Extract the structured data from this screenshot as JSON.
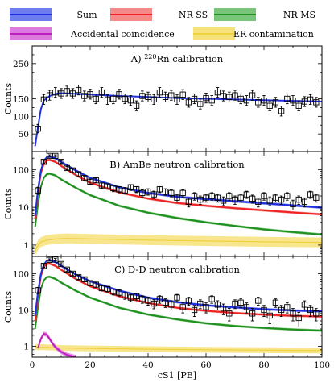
{
  "legend": [
    {
      "label": "Sum",
      "color": "#1f2fe0",
      "band": "#6f7cf0"
    },
    {
      "label": "NR SS",
      "color": "#ee2222",
      "band": "#f48a8a"
    },
    {
      "label": "NR MS",
      "color": "#1f8f1f",
      "band": "#79c579"
    },
    {
      "label": "Accidental coincidence",
      "color": "#c01fc0",
      "band": "#dd7add"
    },
    {
      "label": "ER contamination",
      "color": "#f0d040",
      "band": "#f7e27a"
    }
  ],
  "colors": {
    "sum": "#1f2fe0",
    "nrss": "#ee2222",
    "nrms": "#1f8f1f",
    "acc": "#c01fc0",
    "er": "#f0d040",
    "data": "#000000"
  },
  "xlabel": "cS1 [PE]",
  "xlim": [
    0,
    100
  ],
  "xticks": [
    "0",
    "20",
    "40",
    "60",
    "80",
    "100"
  ],
  "chart_data": [
    {
      "type": "line",
      "title": "A) 220Rn calibration",
      "title_sup": "220",
      "title_pre": "A) ",
      "title_post": "Rn calibration",
      "ylabel": "Counts",
      "yscale": "linear",
      "ylim": [
        0,
        300
      ],
      "yticks": [
        {
          "v": 50,
          "label": "50"
        },
        {
          "v": 100,
          "label": "100"
        },
        {
          "v": 150,
          "label": "150"
        },
        {
          "v": 250,
          "label": "250"
        }
      ],
      "series": [
        {
          "key": "sum",
          "x": [
            1,
            2,
            3,
            4,
            6,
            8,
            10,
            15,
            20,
            30,
            40,
            50,
            60,
            70,
            80,
            90,
            100
          ],
          "y": [
            15,
            70,
            120,
            145,
            158,
            164,
            166,
            164,
            162,
            158,
            155,
            152,
            150,
            148,
            146,
            144,
            142
          ]
        }
      ],
      "data_points": {
        "x": [
          2,
          4,
          6,
          8,
          10,
          12,
          14,
          16,
          18,
          20,
          22,
          24,
          26,
          28,
          30,
          32,
          34,
          36,
          38,
          40,
          42,
          44,
          46,
          48,
          50,
          52,
          54,
          56,
          58,
          60,
          62,
          64,
          66,
          68,
          70,
          72,
          74,
          76,
          78,
          80,
          82,
          84,
          86,
          88,
          90,
          92,
          94,
          96,
          98
        ],
        "y": [
          65,
          148,
          160,
          168,
          165,
          172,
          165,
          175,
          158,
          163,
          150,
          168,
          148,
          150,
          163,
          150,
          145,
          130,
          158,
          155,
          148,
          168,
          155,
          160,
          148,
          162,
          140,
          150,
          135,
          152,
          145,
          168,
          158,
          155,
          160,
          150,
          145,
          160,
          140,
          145,
          130,
          140,
          115,
          150,
          145,
          130,
          142,
          148,
          140
        ],
        "err": [
          12,
          14,
          14,
          14,
          14,
          14,
          14,
          14,
          14,
          14,
          14,
          14,
          14,
          14,
          14,
          14,
          14,
          14,
          14,
          14,
          14,
          14,
          14,
          14,
          14,
          14,
          14,
          14,
          14,
          14,
          14,
          14,
          14,
          14,
          14,
          14,
          14,
          14,
          14,
          14,
          14,
          14,
          14,
          14,
          14,
          14,
          14,
          14,
          14
        ]
      }
    },
    {
      "type": "line",
      "title": "B) AmBe neutron calibration",
      "ylabel": "Counts",
      "yscale": "log",
      "ylim": [
        0.5,
        300
      ],
      "yticks": [
        {
          "v": 1,
          "label": "1"
        },
        {
          "v": 10,
          "label": "10"
        },
        {
          "v": 100,
          "label": "100"
        }
      ],
      "series": [
        {
          "key": "er",
          "x": [
            1,
            2,
            3,
            5,
            8,
            12,
            20,
            40,
            60,
            80,
            100
          ],
          "y": [
            0.7,
            1.0,
            1.2,
            1.35,
            1.45,
            1.5,
            1.45,
            1.35,
            1.28,
            1.22,
            1.18
          ],
          "band": 1.35
        },
        {
          "key": "nrms",
          "x": [
            1,
            2,
            3,
            4,
            5,
            6,
            8,
            10,
            15,
            20,
            30,
            40,
            50,
            60,
            70,
            80,
            90,
            100
          ],
          "y": [
            3,
            12,
            35,
            60,
            75,
            78,
            70,
            55,
            33,
            21,
            11,
            7.2,
            5.2,
            4.0,
            3.2,
            2.6,
            2.2,
            1.9
          ],
          "band": 1.08
        },
        {
          "key": "nrss",
          "x": [
            1,
            2,
            3,
            4,
            5,
            6,
            8,
            10,
            15,
            20,
            30,
            40,
            50,
            60,
            70,
            80,
            90,
            100
          ],
          "y": [
            5,
            25,
            80,
            140,
            175,
            180,
            160,
            125,
            72,
            45,
            25,
            17,
            13,
            11,
            9.5,
            8.3,
            7.3,
            6.5
          ],
          "band": 1.08
        },
        {
          "key": "sum",
          "x": [
            1,
            2,
            3,
            4,
            5,
            6,
            8,
            10,
            15,
            20,
            30,
            40,
            50,
            60,
            70,
            80,
            90,
            100
          ],
          "y": [
            6,
            30,
            95,
            170,
            210,
            220,
            200,
            160,
            95,
            60,
            34,
            24,
            19,
            16.5,
            14.5,
            12.8,
            11.2,
            9.8
          ],
          "band": 1.08
        }
      ],
      "data_points": {
        "x": [
          2,
          4,
          6,
          8,
          10,
          12,
          14,
          16,
          18,
          20,
          22,
          24,
          26,
          28,
          30,
          32,
          34,
          36,
          38,
          40,
          42,
          44,
          46,
          48,
          50,
          52,
          54,
          56,
          58,
          60,
          62,
          64,
          66,
          68,
          70,
          72,
          74,
          76,
          78,
          80,
          82,
          84,
          86,
          88,
          90,
          92,
          94,
          96,
          98
        ],
        "y": [
          28,
          160,
          230,
          230,
          160,
          110,
          95,
          75,
          60,
          48,
          52,
          38,
          36,
          32,
          30,
          28,
          34,
          30,
          24,
          26,
          22,
          30,
          26,
          24,
          18,
          24,
          14,
          20,
          16,
          18,
          20,
          18,
          15,
          20,
          16,
          18,
          22,
          17,
          14,
          20,
          15,
          18,
          16,
          20,
          12,
          16,
          14,
          22,
          18
        ],
        "err": [
          6,
          14,
          16,
          16,
          13,
          11,
          10,
          9,
          8,
          7,
          7,
          6,
          6,
          6,
          5.5,
          5.5,
          6,
          5.5,
          5,
          5,
          4.8,
          5.5,
          5,
          5,
          4.3,
          5,
          3.8,
          4.5,
          4,
          4.3,
          4.5,
          4.3,
          3.9,
          4.5,
          4,
          4.3,
          4.7,
          4.1,
          3.8,
          4.5,
          3.9,
          4.3,
          4,
          4.5,
          3.5,
          4,
          3.8,
          4.7,
          4.3
        ]
      }
    },
    {
      "type": "line",
      "title": "C) D-D neutron calibration",
      "ylabel": "Counts",
      "yscale": "log",
      "ylim": [
        0.5,
        300
      ],
      "yticks": [
        {
          "v": 1,
          "label": "1"
        },
        {
          "v": 10,
          "label": "10"
        },
        {
          "v": 100,
          "label": "100"
        }
      ],
      "series": [
        {
          "key": "er",
          "x": [
            1,
            5,
            10,
            20,
            40,
            60,
            80,
            100
          ],
          "y": [
            0.95,
            0.93,
            0.9,
            0.87,
            0.83,
            0.8,
            0.78,
            0.76
          ],
          "band": 1.2
        },
        {
          "key": "acc",
          "x": [
            2,
            3,
            4,
            5,
            6,
            7,
            8,
            10,
            12,
            15
          ],
          "y": [
            0.9,
            1.6,
            2.2,
            2.1,
            1.6,
            1.2,
            0.95,
            0.7,
            0.58,
            0.5
          ],
          "band": 1.15
        },
        {
          "key": "nrms",
          "x": [
            1,
            2,
            3,
            4,
            5,
            6,
            8,
            10,
            15,
            20,
            30,
            40,
            50,
            60,
            70,
            80,
            90,
            100
          ],
          "y": [
            3,
            12,
            38,
            65,
            80,
            82,
            72,
            57,
            34,
            22,
            11.5,
            7.5,
            5.5,
            4.3,
            3.6,
            3.2,
            2.9,
            2.7
          ],
          "band": 1.08
        },
        {
          "key": "nrss",
          "x": [
            1,
            2,
            3,
            4,
            5,
            6,
            8,
            10,
            15,
            20,
            30,
            40,
            50,
            60,
            70,
            80,
            90,
            100
          ],
          "y": [
            5,
            25,
            85,
            150,
            185,
            190,
            165,
            128,
            72,
            45,
            24,
            15.5,
            11.5,
            9.5,
            8.2,
            7.4,
            6.9,
            6.6
          ],
          "band": 1.08
        },
        {
          "key": "sum",
          "x": [
            1,
            2,
            3,
            4,
            5,
            6,
            8,
            10,
            15,
            20,
            30,
            40,
            50,
            60,
            70,
            80,
            90,
            100
          ],
          "y": [
            7,
            32,
            100,
            180,
            225,
            235,
            210,
            165,
            95,
            62,
            34,
            22,
            16.5,
            13.5,
            11.8,
            10.5,
            9.7,
            9.2
          ],
          "band": 1.08
        }
      ],
      "data_points": {
        "x": [
          2,
          4,
          6,
          8,
          10,
          12,
          14,
          16,
          18,
          20,
          22,
          24,
          26,
          28,
          30,
          32,
          34,
          36,
          38,
          40,
          42,
          44,
          46,
          48,
          50,
          52,
          54,
          56,
          58,
          60,
          62,
          64,
          66,
          68,
          70,
          72,
          74,
          76,
          78,
          80,
          82,
          84,
          86,
          88,
          90,
          92,
          94,
          96,
          98
        ],
        "y": [
          35,
          165,
          240,
          245,
          185,
          130,
          100,
          80,
          70,
          55,
          50,
          40,
          38,
          32,
          30,
          25,
          22,
          24,
          20,
          18,
          15,
          20,
          16,
          14,
          22,
          12,
          18,
          10,
          15,
          12,
          20,
          14,
          11,
          8,
          15,
          16,
          12,
          8,
          18,
          10,
          7,
          16,
          10,
          12,
          8,
          6,
          14,
          10,
          8
        ],
        "err": [
          7,
          15,
          18,
          18,
          15,
          13,
          11,
          10,
          9,
          8,
          7.5,
          6.5,
          6.5,
          6,
          5.8,
          5.3,
          5,
          5.2,
          4.7,
          4.5,
          4.2,
          4.7,
          4.3,
          4,
          4.9,
          3.7,
          4.5,
          3.4,
          4.1,
          3.7,
          4.7,
          4,
          3.6,
          3,
          4.1,
          4.2,
          3.7,
          3,
          4.5,
          3.4,
          2.8,
          4.2,
          3.4,
          3.7,
          3,
          2.6,
          3.9,
          3.4,
          3
        ]
      }
    }
  ]
}
